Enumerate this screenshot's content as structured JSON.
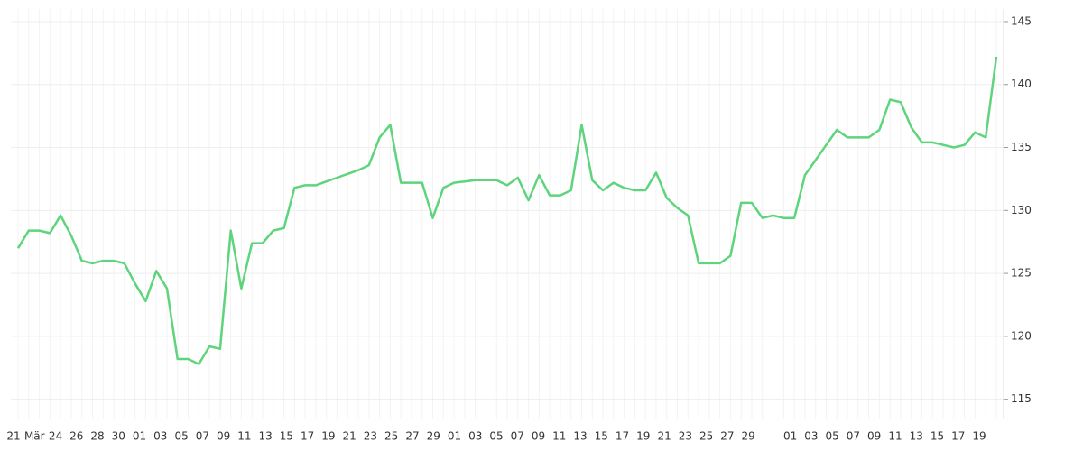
{
  "chart_data": {
    "type": "line",
    "categories": [
      "21",
      null,
      "Mär",
      null,
      "24",
      null,
      "26",
      null,
      "28",
      null,
      "30",
      null,
      "01",
      null,
      "03",
      null,
      "05",
      null,
      "07",
      null,
      "09",
      null,
      "11",
      null,
      "13",
      null,
      "15",
      null,
      "17",
      null,
      "19",
      null,
      "21",
      null,
      "23",
      null,
      "25",
      null,
      "27",
      null,
      "29",
      null,
      "01",
      null,
      "03",
      null,
      "05",
      null,
      "07",
      null,
      "09",
      null,
      "11",
      null,
      "13",
      null,
      "15",
      null,
      "17",
      null,
      "19",
      null,
      "21",
      null,
      "23",
      null,
      "25",
      null,
      "27",
      null,
      "29",
      null,
      null,
      null,
      "01",
      null,
      "03",
      null,
      "05",
      null,
      "07",
      null,
      "09",
      null,
      "11",
      null,
      "13",
      null,
      "15",
      null,
      "17",
      null,
      "19"
    ],
    "series": [
      {
        "color": "#5ed47c",
        "values": [
          127.0,
          128.4,
          128.4,
          128.2,
          129.6,
          128.0,
          126.0,
          125.8,
          126.0,
          126.0,
          125.8,
          124.2,
          122.8,
          125.2,
          123.8,
          118.2,
          118.2,
          117.8,
          119.2,
          119.0,
          128.4,
          123.8,
          127.4,
          127.4,
          128.4,
          128.6,
          131.8,
          132.0,
          132.0,
          132.3,
          132.6,
          132.9,
          133.2,
          133.6,
          135.8,
          136.8,
          132.2,
          132.2,
          132.2,
          129.4,
          131.8,
          132.2,
          132.3,
          132.4,
          132.4,
          132.4,
          132.0,
          132.6,
          130.8,
          132.8,
          131.2,
          131.2,
          131.6,
          136.8,
          132.4,
          131.6,
          132.2,
          131.8,
          131.6,
          131.6,
          133.0,
          131.0,
          130.2,
          129.6,
          125.8,
          125.8,
          125.8,
          126.4,
          130.6,
          130.6,
          129.4,
          129.6,
          129.4,
          129.4,
          132.8,
          134.0,
          135.2,
          136.4,
          135.8,
          135.8,
          135.8,
          136.4,
          138.8,
          138.6,
          136.6,
          135.4,
          135.4,
          135.2,
          135.0,
          135.2,
          136.2,
          135.8,
          142.2
        ]
      }
    ],
    "ylim": [
      113.4,
      146
    ],
    "yticks": [
      115,
      120,
      125,
      130,
      135,
      140,
      145
    ],
    "grid": true
  }
}
